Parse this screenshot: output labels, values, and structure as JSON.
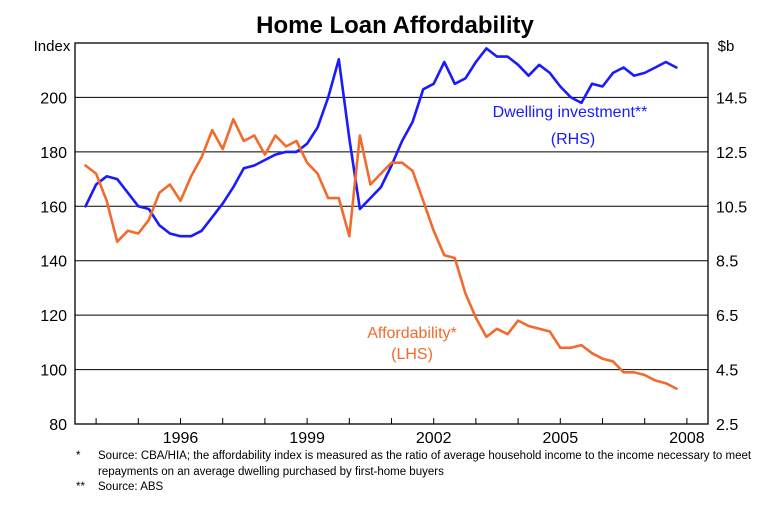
{
  "chart_data": {
    "type": "line",
    "title": "Home Loan Affordability",
    "left_axis": {
      "unit": "Index",
      "ticks": [
        "80",
        "100",
        "120",
        "140",
        "160",
        "180",
        "200"
      ],
      "ylim": [
        80,
        220
      ]
    },
    "right_axis": {
      "unit": "$b",
      "ticks": [
        "2.5",
        "4.5",
        "6.5",
        "8.5",
        "10.5",
        "12.5",
        "14.5"
      ],
      "ylim": [
        2.5,
        16.5
      ]
    },
    "x_axis": {
      "ticks": [
        "1996",
        "1999",
        "2002",
        "2005",
        "2008"
      ],
      "xlim": [
        1993.5,
        2008.5
      ]
    },
    "grid": "horizontal",
    "series": [
      {
        "name": "Dwelling investment**",
        "sublabel": "(RHS)",
        "axis": "right",
        "color": "#1a1aff",
        "x": [
          1993.75,
          1994.0,
          1994.25,
          1994.5,
          1994.75,
          1995.0,
          1995.25,
          1995.5,
          1995.75,
          1996.0,
          1996.25,
          1996.5,
          1996.75,
          1997.0,
          1997.25,
          1997.5,
          1997.75,
          1998.0,
          1998.25,
          1998.5,
          1998.75,
          1999.0,
          1999.25,
          1999.5,
          1999.75,
          2000.0,
          2000.25,
          2000.5,
          2000.75,
          2001.0,
          2001.25,
          2001.5,
          2001.75,
          2002.0,
          2002.25,
          2002.5,
          2002.75,
          2003.0,
          2003.25,
          2003.5,
          2003.75,
          2004.0,
          2004.25,
          2004.5,
          2004.75,
          2005.0,
          2005.25,
          2005.5,
          2005.75,
          2006.0,
          2006.25,
          2006.5,
          2006.75,
          2007.0,
          2007.25,
          2007.5,
          2007.75
        ],
        "values": [
          10.5,
          11.3,
          11.6,
          11.5,
          11.0,
          10.5,
          10.4,
          9.8,
          9.5,
          9.4,
          9.4,
          9.6,
          10.1,
          10.6,
          11.2,
          11.9,
          12.0,
          12.2,
          12.4,
          12.5,
          12.5,
          12.8,
          13.4,
          14.5,
          15.9,
          13.0,
          10.4,
          10.8,
          11.2,
          12.0,
          12.9,
          13.6,
          14.8,
          15.0,
          15.8,
          15.0,
          15.2,
          15.8,
          16.3,
          16.0,
          16.0,
          15.7,
          15.3,
          15.7,
          15.4,
          14.9,
          14.5,
          14.3,
          15.0,
          14.9,
          15.4,
          15.6,
          15.3,
          15.4,
          15.6,
          15.8,
          15.6
        ]
      },
      {
        "name": "Affordability*",
        "sublabel": "(LHS)",
        "axis": "left",
        "color": "#f26a2e",
        "x": [
          1993.75,
          1994.0,
          1994.25,
          1994.5,
          1994.75,
          1995.0,
          1995.25,
          1995.5,
          1995.75,
          1996.0,
          1996.25,
          1996.5,
          1996.75,
          1997.0,
          1997.25,
          1997.5,
          1997.75,
          1998.0,
          1998.25,
          1998.5,
          1998.75,
          1999.0,
          1999.25,
          1999.5,
          1999.75,
          2000.0,
          2000.25,
          2000.5,
          2000.75,
          2001.0,
          2001.25,
          2001.5,
          2001.75,
          2002.0,
          2002.25,
          2002.5,
          2002.75,
          2003.0,
          2003.25,
          2003.5,
          2003.75,
          2004.0,
          2004.25,
          2004.5,
          2004.75,
          2005.0,
          2005.25,
          2005.5,
          2005.75,
          2006.0,
          2006.25,
          2006.5,
          2006.75,
          2007.0,
          2007.25,
          2007.5,
          2007.75
        ],
        "values": [
          175,
          172,
          162,
          147,
          151,
          150,
          155,
          165,
          168,
          162,
          171,
          178,
          188,
          181,
          192,
          184,
          186,
          179,
          186,
          182,
          184,
          176,
          172,
          163,
          163,
          149,
          186,
          168,
          172,
          176,
          176,
          173,
          162,
          151,
          142,
          141,
          128,
          119,
          112,
          115,
          113,
          118,
          116,
          115,
          114,
          108,
          108,
          109,
          106,
          104,
          103,
          99,
          99,
          98,
          96,
          95,
          93
        ]
      }
    ]
  },
  "notes": [
    {
      "mark": "*",
      "text": "Source: CBA/HIA; the affordability index is measured as the ratio of average household income to the income necessary to meet repayments on an average dwelling purchased by first-home buyers"
    },
    {
      "mark": "**",
      "text": "Source: ABS"
    }
  ]
}
